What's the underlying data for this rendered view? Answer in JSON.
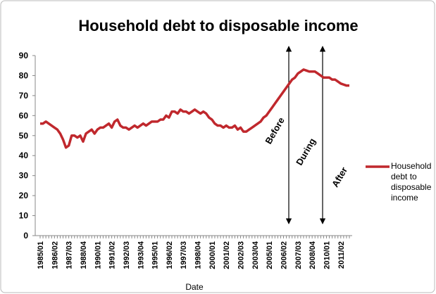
{
  "chart_data": {
    "type": "line",
    "title": "Household debt to disposable income",
    "x_label": "Date",
    "categories": [
      "1985/01",
      null,
      null,
      null,
      null,
      "1986/02",
      null,
      null,
      null,
      null,
      "1987/03",
      null,
      null,
      null,
      null,
      "1988/04",
      null,
      null,
      null,
      null,
      "1990/01",
      null,
      null,
      null,
      null,
      "1991/02",
      null,
      null,
      null,
      null,
      "1992/03",
      null,
      null,
      null,
      null,
      "1993/04",
      null,
      null,
      null,
      null,
      "1995/01",
      null,
      null,
      null,
      null,
      "1996/02",
      null,
      null,
      null,
      null,
      "1997/03",
      null,
      null,
      null,
      null,
      "1998/04",
      null,
      null,
      null,
      null,
      "2000/01",
      null,
      null,
      null,
      null,
      "2001/02",
      null,
      null,
      null,
      null,
      "2002/03",
      null,
      null,
      null,
      null,
      "2003/04",
      null,
      null,
      null,
      null,
      "2005/01",
      null,
      null,
      null,
      null,
      "2006/02",
      null,
      null,
      null,
      null,
      "2007/03",
      null,
      null,
      null,
      null,
      "2008/04",
      null,
      null,
      null,
      null,
      "2010/01",
      null,
      null,
      null,
      null,
      "2011/02",
      null,
      null,
      null
    ],
    "series": [
      {
        "name": "Household debt to disposable income",
        "color": "#c0282d",
        "values": [
          56,
          56,
          57,
          56,
          55,
          54,
          53,
          51,
          48,
          44,
          45,
          50,
          50,
          49,
          50,
          47,
          51,
          52,
          53,
          51,
          53,
          54,
          54,
          55,
          56,
          54,
          57,
          58,
          55,
          54,
          54,
          53,
          54,
          55,
          54,
          55,
          56,
          55,
          56,
          57,
          57,
          57,
          58,
          58,
          60,
          59,
          62,
          62,
          61,
          63,
          62,
          62,
          61,
          62,
          63,
          62,
          61,
          62,
          61,
          59,
          58,
          56,
          55,
          55,
          54,
          55,
          54,
          54,
          55,
          53,
          54,
          52,
          52,
          53,
          54,
          55,
          56,
          57,
          59,
          60,
          62,
          64,
          66,
          68,
          70,
          72,
          74,
          76,
          78,
          79,
          81,
          82,
          83,
          82.5,
          82,
          82,
          82,
          81,
          80,
          79,
          79,
          79,
          78,
          78,
          77,
          76,
          75.5,
          75,
          75
        ]
      }
    ],
    "ylim": [
      0,
      90
    ],
    "yticks": [
      0,
      10,
      20,
      30,
      40,
      50,
      60,
      70,
      80,
      90
    ],
    "annotations": [
      "Before",
      "During",
      "After"
    ],
    "legend": "right"
  }
}
